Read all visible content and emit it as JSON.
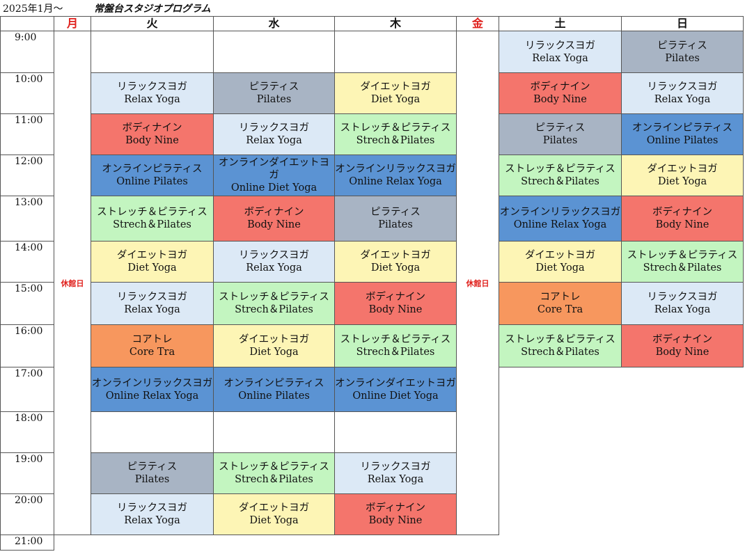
{
  "header": {
    "date_label": "2025年1月～",
    "studio_title": "常盤台スタジオプログラム"
  },
  "days": [
    "月",
    "火",
    "水",
    "木",
    "金",
    "土",
    "日"
  ],
  "closed_label": "休館日",
  "times": [
    "9:00",
    "10:00",
    "11:00",
    "12:00",
    "13:00",
    "14:00",
    "15:00",
    "16:00",
    "17:00",
    "18:00",
    "19:00",
    "20:00",
    "21:00"
  ],
  "class_types": {
    "relax": {
      "jp": "リラックスヨガ",
      "en": "Relax Yoga",
      "color": "#dce9f6"
    },
    "pilates": {
      "jp": "ピラティス",
      "en": "Pilates",
      "color": "#a8b4c4"
    },
    "diet": {
      "jp": "ダイエットヨガ",
      "en": "Diet Yoga",
      "color": "#fdf5b5"
    },
    "body": {
      "jp": "ボディナイン",
      "en": "Body Nine",
      "color": "#f4756c"
    },
    "stretch": {
      "jp": "ストレッチ＆ピラティス",
      "en": "Strech＆Pilates",
      "color": "#c3f5c0"
    },
    "olpilates": {
      "jp": "オンラインピラティス",
      "en": "Online Pilates",
      "color": "#5b93d3"
    },
    "oldiet": {
      "jp": "オンラインダイエットヨガ",
      "en": "Online Diet Yoga",
      "color": "#5b93d3"
    },
    "olrelax": {
      "jp": "オンラインリラックスヨガ",
      "en": "Online Relax Yoga",
      "color": "#5b93d3"
    },
    "core": {
      "jp": "コアトレ",
      "en": "Core Tra",
      "color": "#f7975e"
    }
  },
  "schedule": {
    "火": [
      null,
      "relax",
      "body",
      "olpilates",
      "stretch",
      "diet",
      "relax",
      "core",
      "olrelax",
      null,
      "pilates",
      "relax"
    ],
    "水": [
      null,
      "pilates",
      "relax",
      "oldiet",
      "body",
      "relax",
      "stretch",
      "diet",
      "olpilates",
      null,
      "stretch",
      "diet"
    ],
    "木": [
      null,
      "diet",
      "stretch",
      "olrelax",
      "pilates",
      "diet",
      "body",
      "stretch",
      "oldiet",
      null,
      "relax",
      "body"
    ],
    "土": [
      "relax",
      "body",
      "pilates",
      "stretch",
      "olrelax",
      "diet",
      "core",
      "stretch"
    ],
    "日": [
      "pilates",
      "relax",
      "olpilates",
      "diet",
      "body",
      "stretch",
      "relax",
      "body"
    ]
  }
}
